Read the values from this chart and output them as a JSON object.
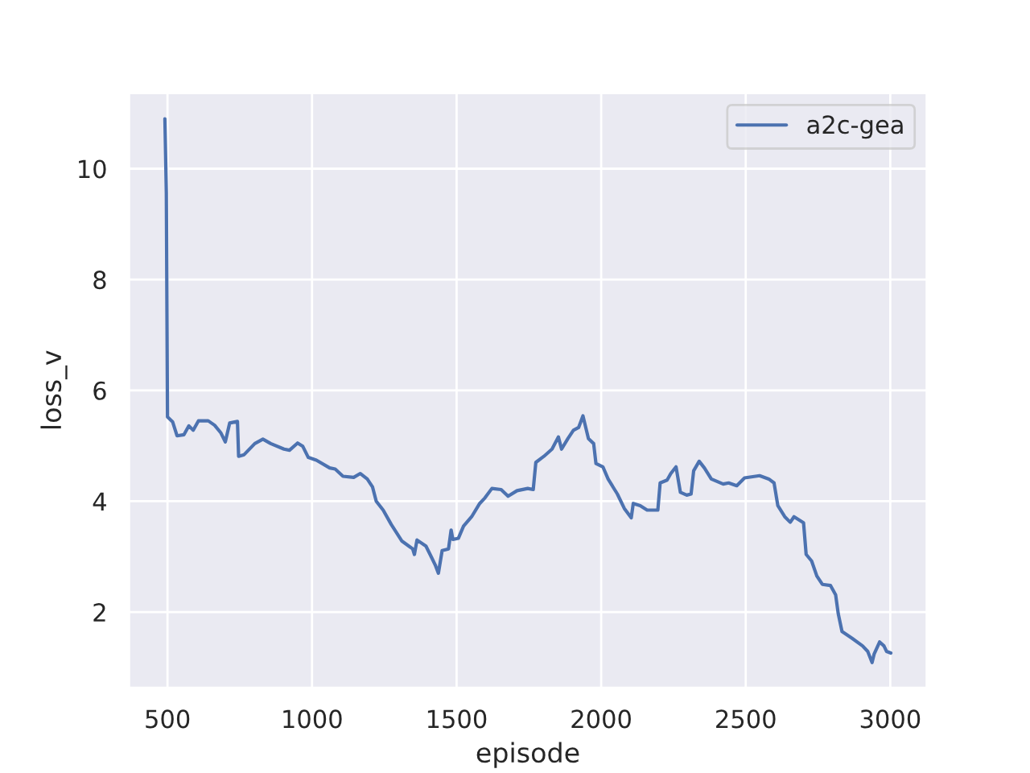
{
  "chart_data": {
    "type": "line",
    "xlabel": "episode",
    "ylabel": "loss_v",
    "xlim": [
      366,
      3127
    ],
    "ylim": [
      0.63,
      11.37
    ],
    "xticks": [
      500,
      1000,
      1500,
      2000,
      2500,
      3000
    ],
    "yticks": [
      2,
      4,
      6,
      8,
      10
    ],
    "grid": true,
    "legend": "top right",
    "marker": "none",
    "line_style": "solid",
    "series": [
      {
        "name": "a2c-gea",
        "color": "#4c72b0",
        "x": [
          491,
          496,
          500,
          518,
          533,
          557,
          574,
          589,
          607,
          641,
          663,
          685,
          700,
          715,
          742,
          746,
          765,
          802,
          830,
          857,
          903,
          922,
          950,
          968,
          987,
          1015,
          1061,
          1080,
          1107,
          1144,
          1167,
          1191,
          1209,
          1222,
          1246,
          1274,
          1311,
          1348,
          1354,
          1363,
          1394,
          1413,
          1426,
          1437,
          1450,
          1472,
          1481,
          1487,
          1506,
          1524,
          1552,
          1580,
          1598,
          1622,
          1654,
          1678,
          1709,
          1746,
          1765,
          1774,
          1802,
          1830,
          1852,
          1863,
          1885,
          1904,
          1922,
          1937,
          1956,
          1974,
          1982,
          2006,
          2024,
          2056,
          2080,
          2104,
          2111,
          2135,
          2159,
          2196,
          2204,
          2228,
          2241,
          2259,
          2274,
          2296,
          2311,
          2320,
          2339,
          2357,
          2381,
          2422,
          2441,
          2469,
          2496,
          2548,
          2580,
          2598,
          2611,
          2635,
          2654,
          2667,
          2700,
          2709,
          2728,
          2746,
          2765,
          2793,
          2811,
          2820,
          2833,
          2867,
          2904,
          2922,
          2937,
          2944,
          2963,
          2978,
          2987,
          3002
        ],
        "values": [
          10.9,
          9.56,
          5.52,
          5.43,
          5.18,
          5.2,
          5.36,
          5.28,
          5.45,
          5.45,
          5.37,
          5.23,
          5.07,
          5.41,
          5.44,
          4.81,
          4.84,
          5.04,
          5.12,
          5.04,
          4.94,
          4.92,
          5.05,
          4.99,
          4.79,
          4.74,
          4.6,
          4.58,
          4.45,
          4.43,
          4.5,
          4.4,
          4.26,
          4.0,
          3.84,
          3.58,
          3.28,
          3.14,
          3.04,
          3.3,
          3.19,
          2.99,
          2.85,
          2.7,
          3.11,
          3.14,
          3.48,
          3.31,
          3.33,
          3.55,
          3.72,
          3.96,
          4.06,
          4.23,
          4.21,
          4.09,
          4.19,
          4.23,
          4.21,
          4.7,
          4.81,
          4.94,
          5.16,
          4.94,
          5.13,
          5.28,
          5.33,
          5.54,
          5.13,
          5.04,
          4.68,
          4.62,
          4.4,
          4.13,
          3.87,
          3.7,
          3.96,
          3.92,
          3.84,
          3.84,
          4.33,
          4.38,
          4.5,
          4.62,
          4.16,
          4.11,
          4.13,
          4.55,
          4.72,
          4.6,
          4.4,
          4.31,
          4.33,
          4.28,
          4.42,
          4.46,
          4.4,
          4.33,
          3.92,
          3.72,
          3.62,
          3.72,
          3.61,
          3.04,
          2.92,
          2.65,
          2.5,
          2.48,
          2.31,
          1.97,
          1.65,
          1.53,
          1.39,
          1.29,
          1.09,
          1.24,
          1.46,
          1.39,
          1.29,
          1.26
        ]
      }
    ]
  }
}
